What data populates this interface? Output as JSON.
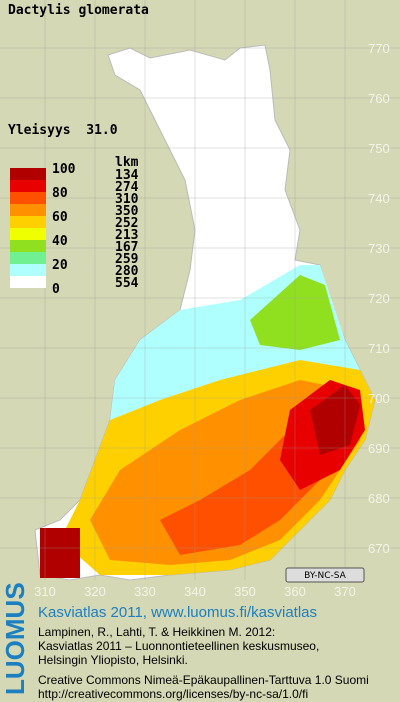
{
  "title": "Dactylis glomerata",
  "frequency": "Yleisyys  31.0",
  "legend": {
    "scale_labels": [
      "100",
      "80",
      "60",
      "40",
      "20",
      "0"
    ],
    "count_header": "lkm",
    "classes": [
      {
        "color": "#b00000",
        "count": "134"
      },
      {
        "color": "#e80000",
        "count": "274"
      },
      {
        "color": "#ff5000",
        "count": "310"
      },
      {
        "color": "#ff9000",
        "count": "350"
      },
      {
        "color": "#ffd000",
        "count": "252"
      },
      {
        "color": "#f0ff00",
        "count": "213"
      },
      {
        "color": "#90e020",
        "count": "167"
      },
      {
        "color": "#70f090",
        "count": "259"
      },
      {
        "color": "#b0ffff",
        "count": "280"
      },
      {
        "color": "#ffffff",
        "count": "554"
      }
    ]
  },
  "grid": {
    "y_labels": [
      "770",
      "760",
      "750",
      "740",
      "730",
      "720",
      "710",
      "700",
      "690",
      "680",
      "670"
    ],
    "x_labels": [
      "310",
      "320",
      "330",
      "340",
      "350",
      "360",
      "370"
    ]
  },
  "license_badge": "BY-NC-SA",
  "footer": {
    "logo": "LUOMUS",
    "link": "Kasviatlas 2011, www.luomus.fi/kasviatlas",
    "citation": [
      "Lampinen, R., Lahti, T. & Heikkinen M. 2012:",
      "Kasviatlas 2011 – Luonnontieteellinen keskusmuseo,",
      "Helsingin Yliopisto, Helsinki."
    ],
    "license": [
      "Creative Commons Nimeä-Epäkaupallinen-Tarttuva 1.0 Suomi",
      "http://creativecommons.org/licenses/by-nc-sa/1.0/fi"
    ]
  }
}
